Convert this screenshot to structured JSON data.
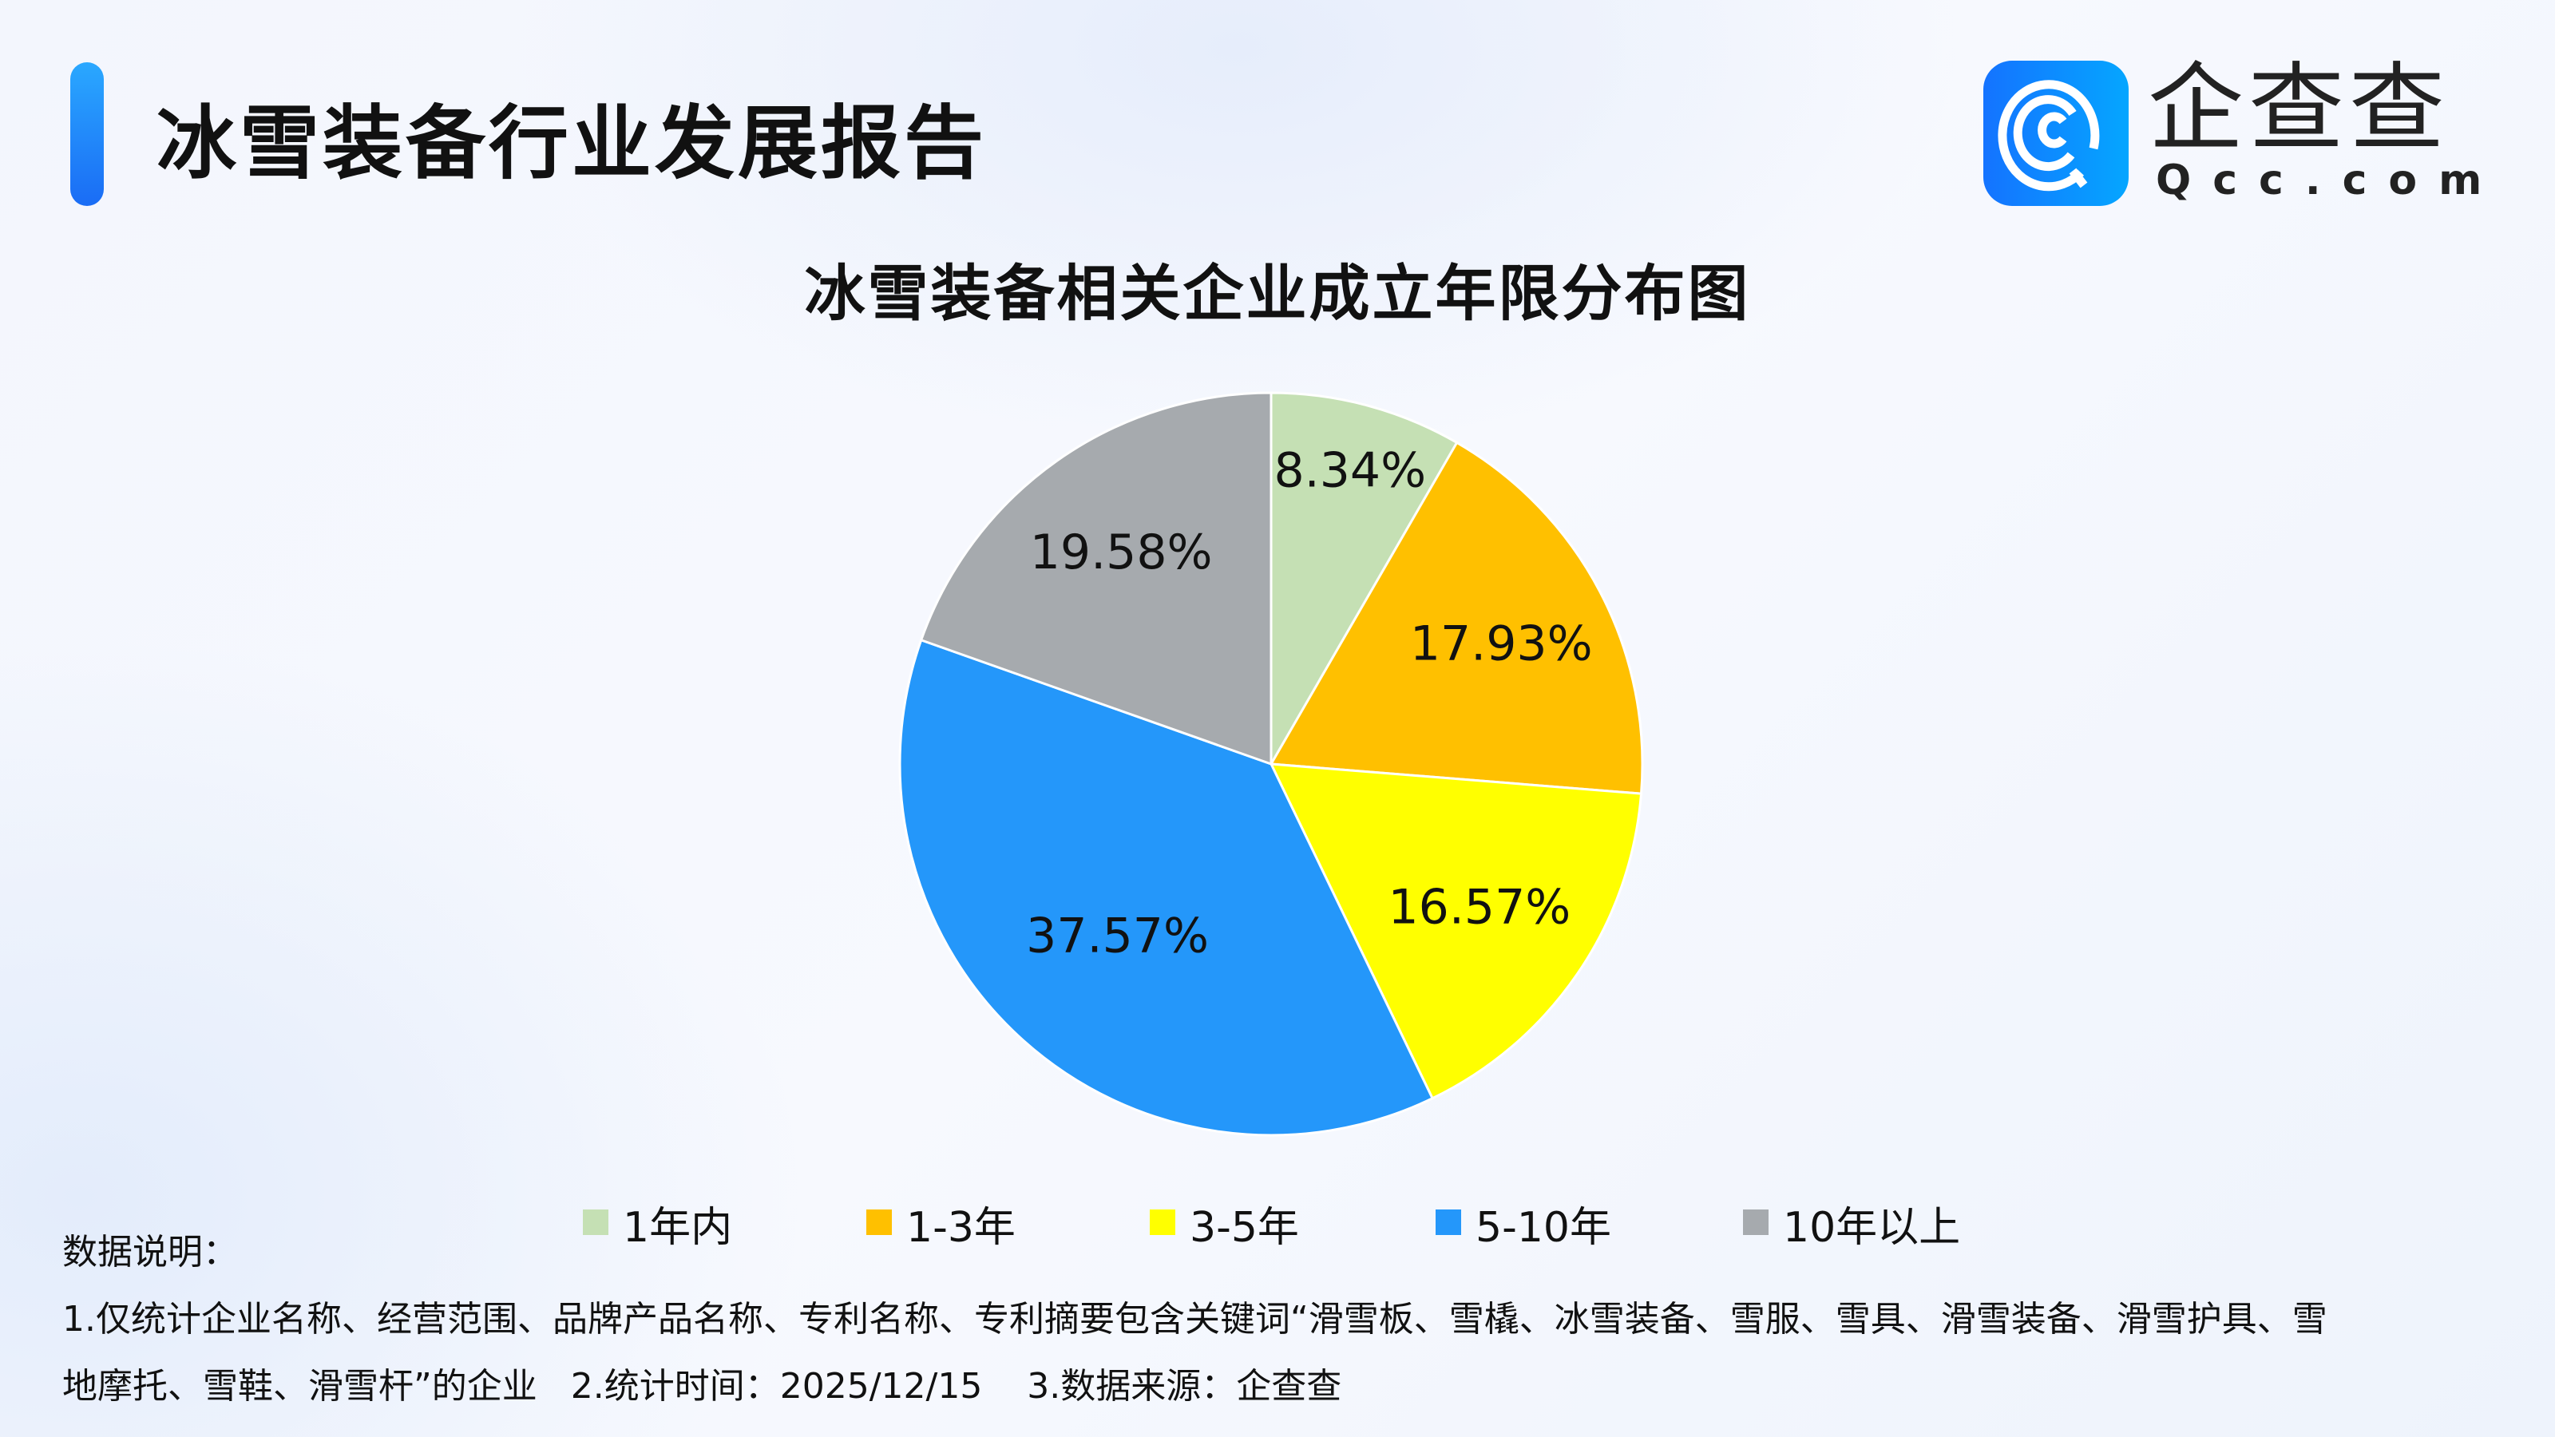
{
  "header": {
    "title": "冰雪装备行业发展报告",
    "logo_text": "企查查",
    "logo_sub": "Qcc.com"
  },
  "colors": {
    "accent": "#1a6cf5",
    "logo": "#1473ff"
  },
  "chart_data": {
    "type": "pie",
    "title": "冰雪装备相关企业成立年限分布图",
    "categories": [
      "1年内",
      "1-3年",
      "3-5年",
      "5-10年",
      "10年以上"
    ],
    "values": [
      8.34,
      17.93,
      16.57,
      37.57,
      19.58
    ],
    "labels": [
      "8.34%",
      "17.93%",
      "16.57%",
      "37.57%",
      "19.58%"
    ],
    "colors": [
      "#c5e0b4",
      "#ffc000",
      "#ffff00",
      "#2497fa",
      "#a6aaae"
    ],
    "start": "top",
    "direction": "clockwise",
    "legend_position": "bottom"
  },
  "notes": {
    "heading": "数据说明：",
    "line1": "1.仅统计企业名称、经营范围、品牌产品名称、专利名称、专利摘要包含关键词“滑雪板、雪橇、冰雪装备、雪服、雪具、滑雪装备、滑雪护具、雪",
    "line2": "地摩托、雪鞋、滑雪杆”的企业   2.统计时间：2025/12/15    3.数据来源：企查查"
  }
}
